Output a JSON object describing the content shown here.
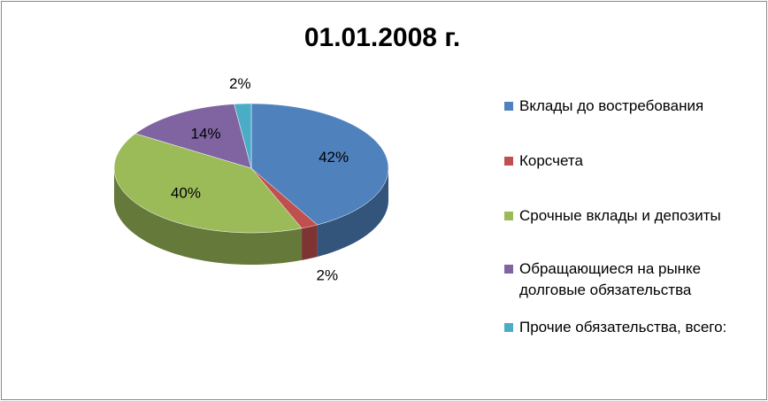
{
  "chart_data": {
    "type": "pie3d",
    "title": "01.01.2008 г.",
    "categories": [
      "Вклады до востребования",
      "Корсчета",
      "Срочные вклады и депозиты",
      "Обращающиеся на рынке долговые обязательства",
      "Прочие обязательства, всего:"
    ],
    "values": [
      42,
      2,
      40,
      14,
      2
    ],
    "value_labels": [
      "42%",
      "2%",
      "40%",
      "14%",
      "2%"
    ],
    "colors": [
      "#4f81bd",
      "#c0504d",
      "#9bbb59",
      "#8064a2",
      "#4bacc6"
    ],
    "legend": "right"
  }
}
